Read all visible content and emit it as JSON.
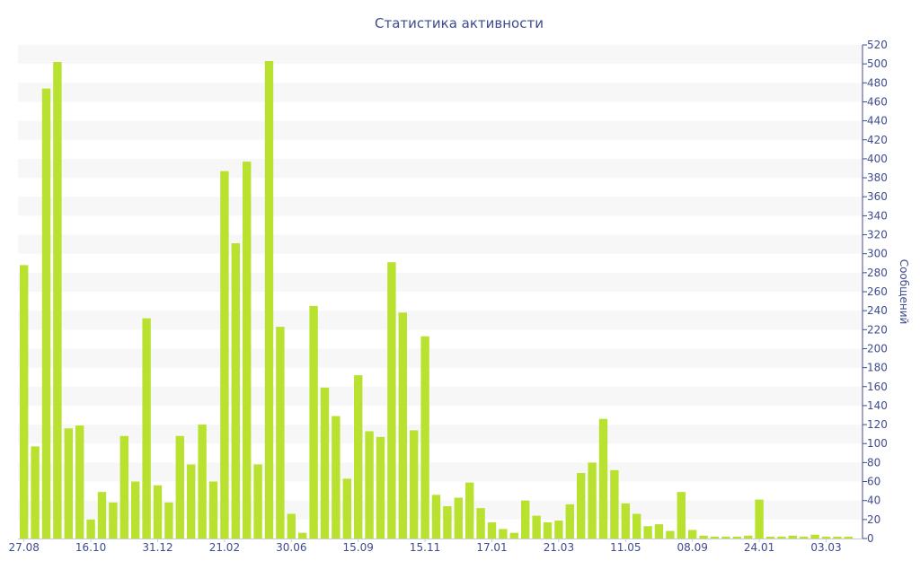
{
  "chart_data": {
    "type": "bar",
    "title": "Статистика активности",
    "xlabel": "",
    "ylabel": "Сообщений",
    "y_axis_side": "right",
    "ylim": [
      0,
      520
    ],
    "y_tick_step": 20,
    "grid": "alternating horizontal bands",
    "x_tick_labels": [
      "27.08",
      "16.10",
      "31.12",
      "21.02",
      "30.06",
      "15.09",
      "15.11",
      "17.01",
      "21.03",
      "11.05",
      "08.09",
      "24.01",
      "03.03"
    ],
    "x_tick_positions": [
      0,
      6,
      12,
      18,
      24,
      30,
      36,
      42,
      48,
      54,
      60,
      66,
      72
    ],
    "colors": {
      "bar": "#b9e12f",
      "band": "#f7f7f7",
      "text": "#3e4b8e",
      "axis": "#3e4b8e"
    },
    "values": [
      288,
      97,
      474,
      502,
      116,
      119,
      20,
      49,
      38,
      108,
      60,
      232,
      56,
      38,
      108,
      78,
      120,
      60,
      387,
      311,
      397,
      78,
      503,
      223,
      26,
      6,
      245,
      159,
      129,
      63,
      172,
      113,
      107,
      291,
      238,
      114,
      213,
      46,
      34,
      43,
      59,
      32,
      17,
      10,
      6,
      40,
      24,
      17,
      19,
      36,
      69,
      80,
      126,
      72,
      37,
      26,
      13,
      15,
      8,
      49,
      9,
      3,
      2,
      2,
      2,
      3,
      41,
      2,
      2,
      3,
      2,
      4,
      2,
      2,
      2
    ]
  }
}
